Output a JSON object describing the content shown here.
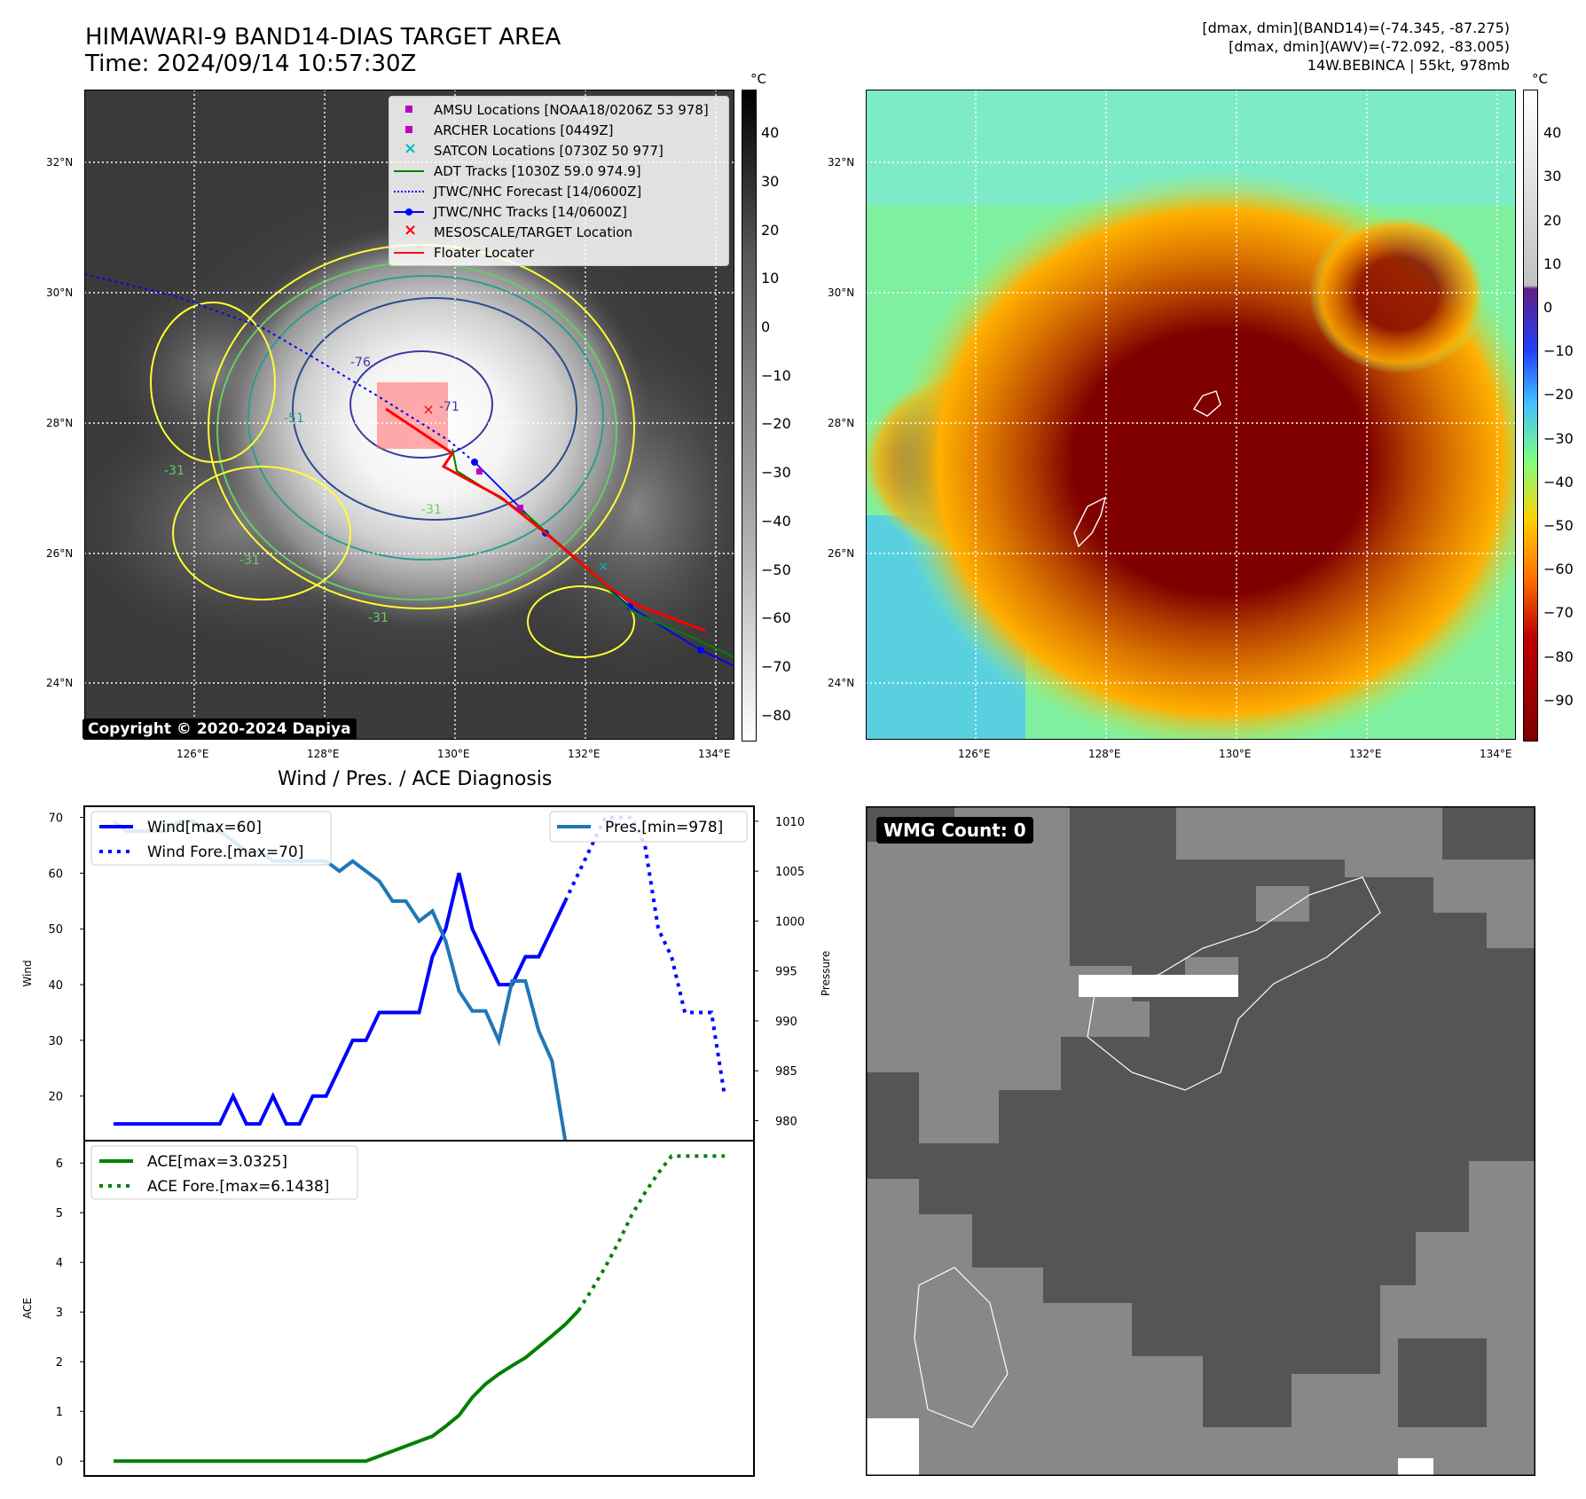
{
  "header": {
    "title_line1": "HIMAWARI-9 BAND14-DIAS TARGET AREA",
    "title_line2": "Time: 2024/09/14 10:57:30Z",
    "info_line1": "[dmax, dmin](BAND14)=(-74.345, -87.275)",
    "info_line2": "[dmax, dmin](AWV)=(-72.092, -83.005)",
    "info_line3": "14W.BEBINCA | 55kt, 978mb"
  },
  "map_left": {
    "lat_labels": [
      "32°N",
      "30°N",
      "28°N",
      "26°N",
      "24°N"
    ],
    "lon_labels": [
      "126°E",
      "128°E",
      "130°E",
      "132°E",
      "134°E"
    ],
    "colorbar_unit": "°C",
    "colorbar_ticks": [
      "40",
      "30",
      "20",
      "10",
      "0",
      "−10",
      "−20",
      "−30",
      "−40",
      "−50",
      "−60",
      "−70",
      "−80"
    ],
    "copyright": "Copyright © 2020-2024 Dapiya",
    "legend": [
      {
        "label": "AMSU Locations [NOAA18/0206Z 53 978]",
        "marker": "square",
        "color": "#bf00bf"
      },
      {
        "label": "ARCHER Locations [0449Z]",
        "marker": "square",
        "color": "#bf00bf"
      },
      {
        "label": "SATCON Locations [0730Z 50 977]",
        "marker": "x",
        "color": "#00bfbf"
      },
      {
        "label": "ADT Tracks [1030Z 59.0 974.9]",
        "marker": "line",
        "color": "#008000"
      },
      {
        "label": "JTWC/NHC Forecast [14/0600Z]",
        "marker": "dotted",
        "color": "#0000ff"
      },
      {
        "label": "JTWC/NHC Tracks [14/0600Z]",
        "marker": "line-dot",
        "color": "#0000ff"
      },
      {
        "label": "MESOSCALE/TARGET Location",
        "marker": "x",
        "color": "#ff0000"
      },
      {
        "label": "Floater Locater",
        "marker": "line",
        "color": "#ff0000"
      }
    ],
    "contour_labels": [
      "-76",
      "-71",
      "-51",
      "-31",
      "-31",
      "-31",
      "-31"
    ]
  },
  "map_right": {
    "lat_labels": [
      "32°N",
      "30°N",
      "28°N",
      "26°N",
      "24°N"
    ],
    "lon_labels": [
      "126°E",
      "128°E",
      "130°E",
      "132°E",
      "134°E"
    ],
    "colorbar_unit": "°C",
    "colorbar_ticks": [
      "40",
      "30",
      "20",
      "10",
      "0",
      "−10",
      "−20",
      "−30",
      "−40",
      "−50",
      "−60",
      "−70",
      "−80",
      "−90"
    ]
  },
  "wmg": {
    "label": "WMG Count: 0"
  },
  "chart_data": [
    {
      "type": "line",
      "title": "Wind / Pres. / ACE Diagnosis",
      "ylabel": "Wind",
      "ylabel_right": "Pressure",
      "ylim": [
        12,
        72
      ],
      "ylim_right": [
        978,
        1011.5
      ],
      "yticks": [
        20,
        30,
        40,
        50,
        60,
        70
      ],
      "yticks_right": [
        980,
        985,
        990,
        995,
        1000,
        1005,
        1010
      ],
      "series": [
        {
          "name": "Wind[max=60]",
          "color": "#0000ff",
          "style": "solid",
          "values": [
            15,
            15,
            15,
            15,
            15,
            15,
            15,
            15,
            15,
            20,
            15,
            15,
            20,
            15,
            15,
            20,
            20,
            25,
            30,
            30,
            35,
            35,
            35,
            35,
            45,
            50,
            60,
            50,
            45,
            40,
            40,
            45,
            45,
            50,
            55
          ]
        },
        {
          "name": "Wind Fore.[max=70]",
          "color": "#0000ff",
          "style": "dotted",
          "offset": 34,
          "values": [
            55,
            60,
            65,
            70,
            70,
            70,
            65,
            50,
            45,
            35,
            35,
            35,
            20
          ]
        },
        {
          "name": "Pres.[min=978]",
          "color": "#1f77b4",
          "style": "solid",
          "axis": "right",
          "values": [
            1010,
            1009,
            1009,
            1009,
            1009,
            1010,
            1010,
            1009,
            1009,
            1008,
            1007,
            1007,
            1006,
            1006,
            1006,
            1006,
            1006,
            1005,
            1006,
            1005,
            1004,
            1002,
            1002,
            1000,
            1001,
            998,
            993,
            991,
            991,
            988,
            994,
            994,
            989,
            986,
            978
          ]
        }
      ]
    },
    {
      "type": "line",
      "ylabel": "ACE",
      "ylim": [
        -0.3,
        6.45
      ],
      "yticks": [
        0,
        1,
        2,
        3,
        4,
        5,
        6
      ],
      "series": [
        {
          "name": "ACE[max=3.0325]",
          "color": "#008000",
          "style": "solid",
          "values": [
            0,
            0,
            0,
            0,
            0,
            0,
            0,
            0,
            0,
            0,
            0,
            0,
            0,
            0,
            0,
            0,
            0,
            0,
            0,
            0,
            0.1,
            0.2,
            0.3,
            0.4,
            0.5,
            0.7,
            0.92,
            1.28,
            1.55,
            1.75,
            1.92,
            2.08,
            2.3,
            2.52,
            2.75,
            3.03
          ]
        },
        {
          "name": "ACE Fore.[max=6.1438]",
          "color": "#008000",
          "style": "dotted",
          "offset": 35,
          "values": [
            3.03,
            3.45,
            3.9,
            4.4,
            4.95,
            5.4,
            5.8,
            6.14,
            6.14,
            6.14,
            6.14,
            6.14
          ]
        }
      ]
    }
  ]
}
